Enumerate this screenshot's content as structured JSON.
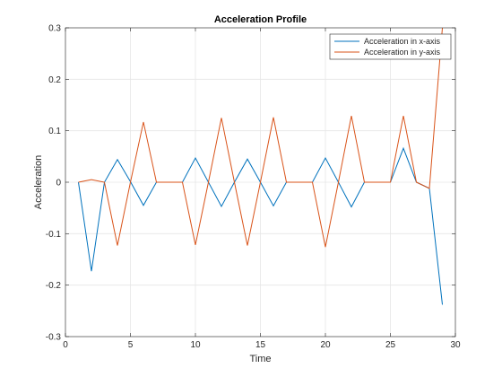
{
  "chart_data": {
    "type": "line",
    "title": "Acceleration Profile",
    "xlabel": "Time",
    "ylabel": "Acceleration",
    "xlim": [
      0,
      30
    ],
    "ylim": [
      -0.3,
      0.3
    ],
    "xticks": [
      0,
      5,
      10,
      15,
      20,
      25,
      30
    ],
    "xtick_labels": [
      "0",
      "5",
      "10",
      "15",
      "20",
      "25",
      "30"
    ],
    "yticks": [
      -0.3,
      -0.2,
      -0.1,
      0,
      0.1,
      0.2,
      0.3
    ],
    "ytick_labels": [
      "-0.3",
      "-0.2",
      "-0.1",
      "0",
      "0.1",
      "0.2",
      "0.3"
    ],
    "grid": true,
    "legend_position": "top-right",
    "x": [
      1,
      2,
      3,
      4,
      5,
      6,
      7,
      8,
      9,
      10,
      11,
      12,
      13,
      14,
      15,
      16,
      17,
      18,
      19,
      20,
      21,
      22,
      23,
      24,
      25,
      26,
      27,
      28,
      29
    ],
    "series": [
      {
        "name": "Acceleration in x-axis",
        "color": "#0072BD",
        "values": [
          0,
          -0.173,
          0,
          0.044,
          0.001,
          -0.045,
          0,
          0,
          0,
          0.047,
          0,
          -0.047,
          0,
          0.045,
          0,
          -0.046,
          0,
          0,
          0,
          0.047,
          0,
          -0.048,
          0,
          0,
          0,
          0.066,
          0,
          -0.012,
          -0.238
        ]
      },
      {
        "name": "Acceleration in y-axis",
        "color": "#D95319",
        "values": [
          0,
          0.005,
          0,
          -0.123,
          0,
          0.117,
          0,
          0,
          0,
          -0.122,
          0,
          0.125,
          0,
          -0.123,
          0,
          0.126,
          0,
          0,
          0,
          -0.126,
          0,
          0.129,
          0,
          0,
          0,
          0.129,
          0,
          -0.012,
          0.3
        ]
      }
    ]
  }
}
